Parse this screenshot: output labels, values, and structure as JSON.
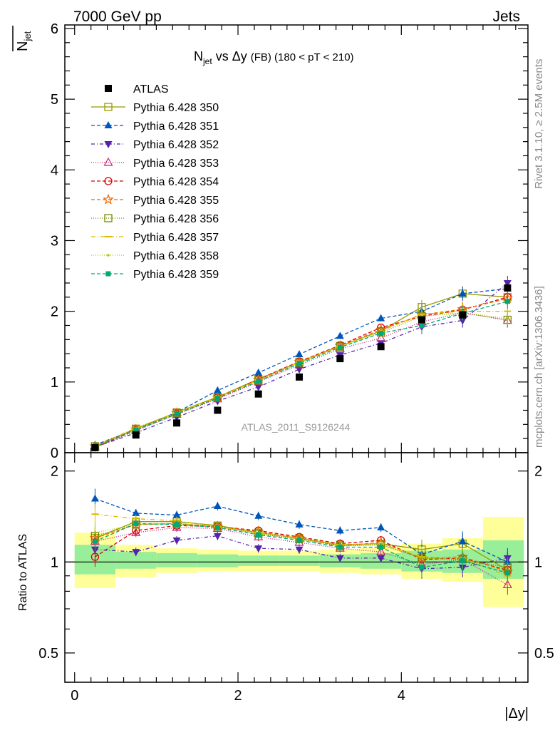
{
  "header": {
    "left": "7000 GeV pp",
    "right": "Jets"
  },
  "side": {
    "rivet": "Rivet 3.1.10, ≥ 2.5M events",
    "mcplots": "mcplots.cern.ch [arXiv:1306.3436]"
  },
  "chart_data": {
    "type": "scatter",
    "title_main": "N",
    "title_sub": "jet",
    "title_rest": " vs Δy ",
    "title_fb": "(FB)",
    "title_range": " (180 < pT < 210)",
    "ylabel_main": "N",
    "ylabel_sub": "jet",
    "ratio_ylabel": "Ratio to ATLAS",
    "xlabel": "|Δy|",
    "watermark": "ATLAS_2011_S9126244",
    "xlim": [
      -0.12,
      5.55
    ],
    "ylim": [
      0,
      6.05
    ],
    "ratio_ylim": [
      0.4,
      2.3
    ],
    "ratio_log": true,
    "x_ticks": [
      "0",
      "2",
      "4"
    ],
    "y_ticks": [
      "0",
      "1",
      "2",
      "3",
      "4",
      "5",
      "6"
    ],
    "ratio_ticks": [
      "0.5",
      "1",
      "2"
    ],
    "x": [
      0.25,
      0.75,
      1.25,
      1.75,
      2.25,
      2.75,
      3.25,
      3.75,
      4.25,
      4.75,
      5.3
    ],
    "band_edges": [
      0,
      0.5,
      1.0,
      1.5,
      2.0,
      2.5,
      3.0,
      3.5,
      4.0,
      4.5,
      5.0,
      5.5
    ],
    "band_inner": [
      [
        0.91,
        1.14
      ],
      [
        0.95,
        1.08
      ],
      [
        0.96,
        1.07
      ],
      [
        0.96,
        1.06
      ],
      [
        0.97,
        1.05
      ],
      [
        0.97,
        1.05
      ],
      [
        0.96,
        1.06
      ],
      [
        0.95,
        1.07
      ],
      [
        0.93,
        1.09
      ],
      [
        0.92,
        1.1
      ],
      [
        0.88,
        1.18
      ]
    ],
    "band_outer": [
      [
        0.82,
        1.25
      ],
      [
        0.89,
        1.14
      ],
      [
        0.92,
        1.11
      ],
      [
        0.93,
        1.1
      ],
      [
        0.93,
        1.09
      ],
      [
        0.93,
        1.09
      ],
      [
        0.92,
        1.1
      ],
      [
        0.91,
        1.12
      ],
      [
        0.88,
        1.15
      ],
      [
        0.86,
        1.2
      ],
      [
        0.71,
        1.41
      ]
    ],
    "atlas": {
      "name": "ATLAS",
      "values": [
        0.07,
        0.25,
        0.42,
        0.6,
        0.83,
        1.07,
        1.33,
        1.5,
        1.88,
        1.95,
        2.33
      ]
    },
    "series": [
      {
        "name": "Pythia 6.428 350",
        "color": "#999900",
        "marker": "square-open",
        "dash": "",
        "values": [
          0.09,
          0.34,
          0.57,
          0.79,
          1.04,
          1.28,
          1.51,
          1.72,
          2.06,
          2.25,
          2.2
        ],
        "ratio": [
          1.2,
          1.36,
          1.36,
          1.32,
          1.25,
          1.2,
          1.14,
          1.15,
          1.1,
          1.15,
          0.94
        ]
      },
      {
        "name": "Pythia 6.428 351",
        "color": "#0055bb",
        "marker": "triangle-up",
        "dash": "5,3",
        "values": [
          0.11,
          0.33,
          0.57,
          0.88,
          1.13,
          1.39,
          1.65,
          1.9,
          2.0,
          2.25,
          2.32
        ],
        "ratio": [
          1.62,
          1.45,
          1.43,
          1.53,
          1.42,
          1.33,
          1.27,
          1.3,
          1.06,
          1.17,
          1.0
        ]
      },
      {
        "name": "Pythia 6.428 352",
        "color": "#5522aa",
        "marker": "triangle-down",
        "dash": "5,3,1,3",
        "values": [
          0.08,
          0.28,
          0.5,
          0.73,
          0.93,
          1.18,
          1.38,
          1.55,
          1.78,
          1.87,
          2.4
        ],
        "ratio": [
          1.1,
          1.08,
          1.18,
          1.22,
          1.11,
          1.1,
          1.03,
          1.03,
          0.95,
          0.96,
          1.03
        ]
      },
      {
        "name": "Pythia 6.428 353",
        "color": "#cc2277",
        "marker": "triangle-open",
        "dash": "1,2",
        "values": [
          0.08,
          0.31,
          0.54,
          0.76,
          1.0,
          1.24,
          1.47,
          1.62,
          1.85,
          1.98,
          1.87
        ],
        "ratio": [
          1.17,
          1.25,
          1.3,
          1.29,
          1.21,
          1.16,
          1.11,
          1.08,
          0.98,
          1.02,
          0.84
        ]
      },
      {
        "name": "Pythia 6.428 354",
        "color": "#dd0000",
        "marker": "circle-open",
        "dash": "5,3",
        "values": [
          0.075,
          0.32,
          0.55,
          0.78,
          1.04,
          1.29,
          1.52,
          1.77,
          1.93,
          2.02,
          2.2
        ],
        "ratio": [
          1.04,
          1.27,
          1.32,
          1.31,
          1.27,
          1.21,
          1.15,
          1.18,
          1.02,
          1.03,
          0.94
        ]
      },
      {
        "name": "Pythia 6.428 355",
        "color": "#ee6600",
        "marker": "star-open",
        "dash": "5,3",
        "values": [
          0.09,
          0.33,
          0.56,
          0.78,
          1.03,
          1.28,
          1.51,
          1.74,
          1.95,
          2.03,
          2.18
        ],
        "ratio": [
          1.2,
          1.33,
          1.34,
          1.31,
          1.26,
          1.2,
          1.13,
          1.16,
          1.03,
          1.04,
          0.93
        ]
      },
      {
        "name": "Pythia 6.428 356",
        "color": "#778800",
        "marker": "square-open",
        "dash": "1,2",
        "values": [
          0.09,
          0.33,
          0.56,
          0.78,
          1.02,
          1.27,
          1.5,
          1.7,
          1.93,
          1.98,
          1.88
        ],
        "ratio": [
          1.22,
          1.33,
          1.34,
          1.31,
          1.24,
          1.19,
          1.13,
          1.14,
          1.03,
          1.02,
          0.96
        ]
      },
      {
        "name": "Pythia 6.428 357",
        "color": "#ddbb00",
        "marker": "dash",
        "dash": "6,3,1,3",
        "values": [
          0.095,
          0.35,
          0.57,
          0.79,
          1.03,
          1.28,
          1.51,
          1.72,
          1.96,
          2.0,
          2.0
        ],
        "ratio": [
          1.44,
          1.39,
          1.37,
          1.31,
          1.25,
          1.2,
          1.14,
          1.15,
          1.04,
          1.03,
          0.9
        ]
      },
      {
        "name": "Pythia 6.428 358",
        "color": "#aacc00",
        "marker": "dot",
        "dash": "1,2",
        "values": [
          0.09,
          0.33,
          0.56,
          0.78,
          1.02,
          1.27,
          1.5,
          1.7,
          1.93,
          1.98,
          1.9
        ],
        "ratio": [
          1.25,
          1.33,
          1.34,
          1.31,
          1.24,
          1.19,
          1.13,
          1.14,
          1.03,
          1.02,
          0.92
        ]
      },
      {
        "name": "Pythia 6.428 359",
        "color": "#00aa77",
        "marker": "square-filled",
        "dash": "5,3",
        "values": [
          0.085,
          0.32,
          0.55,
          0.77,
          1.01,
          1.26,
          1.49,
          1.69,
          1.8,
          1.97,
          2.14
        ],
        "ratio": [
          1.17,
          1.34,
          1.33,
          1.3,
          1.23,
          1.18,
          1.12,
          1.12,
          0.96,
          1.01,
          0.92
        ]
      }
    ]
  }
}
